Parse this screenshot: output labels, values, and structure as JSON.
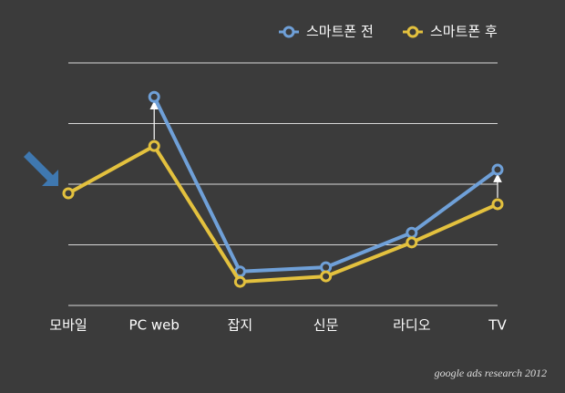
{
  "chart_data": {
    "type": "line",
    "categories": [
      "모바일",
      "PC  web",
      "잡지",
      "신문",
      "라디오",
      "TV"
    ],
    "series": [
      {
        "name": "스마트폰 전",
        "color": "#6fa0d8",
        "values": [
          null,
          3.44,
          0.56,
          0.63,
          1.2,
          2.24
        ]
      },
      {
        "name": "스마트폰 후",
        "color": "#e3c13e",
        "values": [
          1.85,
          2.63,
          0.39,
          0.48,
          1.04,
          1.67
        ]
      }
    ],
    "ylim": [
      0,
      4
    ],
    "yticks": [
      0,
      1,
      2,
      3,
      4
    ],
    "grid": true,
    "source": "google ads research 2012"
  }
}
